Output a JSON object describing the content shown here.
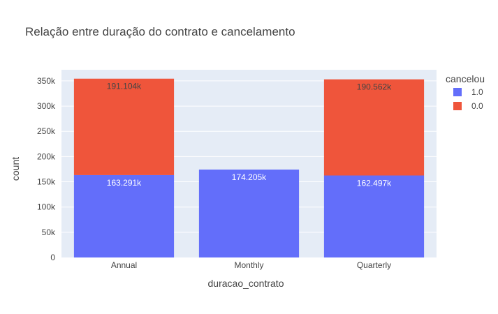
{
  "chart_data": {
    "type": "bar",
    "barmode": "stack",
    "title": "Relação entre duração do contrato e cancelamento",
    "xlabel": "duracao_contrato",
    "ylabel": "count",
    "categories": [
      "Annual",
      "Monthly",
      "Quarterly"
    ],
    "series": [
      {
        "name": "1.0",
        "color": "#636efa",
        "values": [
          163291,
          174205,
          162497
        ],
        "labels": [
          "163.291k",
          "174.205k",
          "162.497k"
        ],
        "label_color": "#ffffff"
      },
      {
        "name": "0.0",
        "color": "#ef553b",
        "values": [
          191104,
          null,
          190562
        ],
        "labels": [
          "191.104k",
          "",
          "190.562k"
        ],
        "label_color": "#444444"
      }
    ],
    "ylim": [
      0,
      372000
    ],
    "yticks": [
      0,
      50000,
      100000,
      150000,
      200000,
      250000,
      300000,
      350000
    ],
    "ytick_labels": [
      "0",
      "50k",
      "100k",
      "150k",
      "200k",
      "250k",
      "300k",
      "350k"
    ],
    "grid": true,
    "legend_title": "cancelou",
    "legend_position": "top-right",
    "plot_background": "#e5ecf6"
  }
}
